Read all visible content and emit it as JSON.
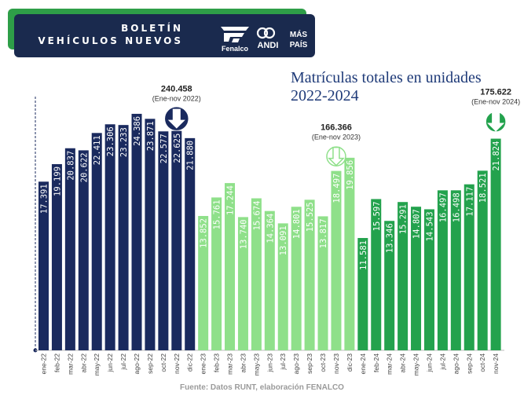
{
  "header": {
    "line1": "BOLETÍN",
    "line2": "VEHÍCULOS NUEVOS",
    "logos": [
      {
        "name": "fenalco-logo",
        "text": "Fenalco"
      },
      {
        "name": "andi-logo",
        "text": "ANDI"
      },
      {
        "name": "mas-pais-logo",
        "text": "MÁS PAÍS"
      }
    ]
  },
  "colors": {
    "y2022": "#1a2a5e",
    "y2023": "#8fe08a",
    "y2024": "#23a24d",
    "title": "#1e3a78",
    "banner": "#1a2a4e",
    "banner_accent": "#2e9e48"
  },
  "chart_data": {
    "type": "bar",
    "title_line1": "Matrículas totales en unidades",
    "title_line2": "2022-2024",
    "categories": [
      "ene-22",
      "feb-22",
      "mar-22",
      "abr-22",
      "may-22",
      "jun-22",
      "jul-22",
      "ago-22",
      "sep-22",
      "oct-22",
      "nov-22",
      "dic-22",
      "ene-23",
      "feb-23",
      "mar-23",
      "abr-23",
      "may-23",
      "jun-23",
      "jul-23",
      "ago-23",
      "sep-23",
      "oct-23",
      "nov-23",
      "dic-23",
      "ene-24",
      "feb-24",
      "mar-24",
      "abr-24",
      "may-24",
      "jun-24",
      "jul-24",
      "ago-24",
      "sep-24",
      "oct-24",
      "nov-24"
    ],
    "values": [
      17391,
      19199,
      20837,
      20622,
      22411,
      23306,
      23233,
      24386,
      23871,
      22577,
      22625,
      21880,
      13852,
      15761,
      17244,
      13740,
      15674,
      14364,
      13091,
      14801,
      15525,
      13817,
      18497,
      19856,
      11581,
      15597,
      13346,
      15291,
      14807,
      14543,
      16497,
      16498,
      17117,
      18521,
      21824
    ],
    "value_labels": [
      "17.391",
      "19.199",
      "20.837",
      "20.622",
      "22.411",
      "23.306",
      "23.233",
      "24.386",
      "23.871",
      "22.577",
      "22.625",
      "21.880",
      "13.852",
      "15.761",
      "17.244",
      "13.740",
      "15.674",
      "14.364",
      "13.091",
      "14.801",
      "15.525",
      "13.817",
      "18.497",
      "19.856",
      "11.581",
      "15.597",
      "13.346",
      "15.291",
      "14.807",
      "14.543",
      "16.497",
      "16.498",
      "17.117",
      "18.521",
      "21.824"
    ],
    "year_groups": [
      {
        "year": "2022",
        "start": 0,
        "end": 11
      },
      {
        "year": "2023",
        "start": 12,
        "end": 23
      },
      {
        "year": "2024",
        "start": 24,
        "end": 34
      }
    ],
    "ylim": [
      0,
      26000
    ],
    "grid": false,
    "annotations": [
      {
        "total": "240.458",
        "period": "(Ene-nov 2022)",
        "arrow_index": 10,
        "style": "solid"
      },
      {
        "total": "166.366",
        "period": "(Ene-nov 2023)",
        "arrow_index": 22,
        "style": "outline"
      },
      {
        "total": "175.622",
        "period": "(Ene-nov 2024)",
        "arrow_index": 34,
        "style": "solid"
      }
    ],
    "source": "Fuente: Datos RUNT, elaboración FENALCO"
  }
}
